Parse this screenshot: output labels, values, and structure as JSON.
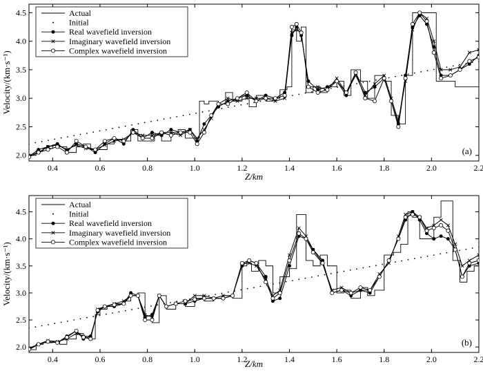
{
  "legend_labels": [
    "Actual",
    "Initial",
    "Real wavefield inversion",
    "Imaginary wavefield inversion",
    "Complex wavefield inversion"
  ],
  "chart_data": [
    {
      "type": "line",
      "panel_label": "(a)",
      "xlabel": "Z/km",
      "ylabel": "Velocity/(km·s⁻¹)",
      "xlim": [
        0.3,
        2.2
      ],
      "ylim": [
        1.9,
        4.65
      ],
      "xticks": [
        0.4,
        0.6,
        0.8,
        1.0,
        1.2,
        1.4,
        1.6,
        1.8,
        2.0,
        2.2
      ],
      "yticks": [
        2.0,
        2.5,
        3.0,
        3.5,
        4.0,
        4.5
      ],
      "legend_position": "top-left",
      "series": [
        {
          "name": "Actual",
          "style": "solid",
          "x": [
            0.3,
            0.33,
            0.36,
            0.4,
            0.43,
            0.46,
            0.5,
            0.53,
            0.56,
            0.6,
            0.63,
            0.66,
            0.7,
            0.73,
            0.76,
            0.8,
            0.83,
            0.86,
            0.9,
            0.93,
            0.96,
            1.0,
            1.02,
            1.04,
            1.06,
            1.1,
            1.13,
            1.16,
            1.2,
            1.23,
            1.26,
            1.3,
            1.33,
            1.36,
            1.39,
            1.41,
            1.43,
            1.45,
            1.47,
            1.5,
            1.53,
            1.56,
            1.6,
            1.63,
            1.66,
            1.7,
            1.73,
            1.76,
            1.8,
            1.83,
            1.86,
            1.89,
            1.92,
            1.94,
            1.97,
            2.0,
            2.02,
            2.05,
            2.1,
            2.13,
            2.16,
            2.2
          ],
          "y": [
            2.0,
            2.08,
            2.12,
            2.18,
            2.15,
            2.05,
            2.15,
            2.2,
            2.1,
            2.1,
            2.2,
            2.28,
            2.25,
            2.45,
            2.25,
            2.25,
            2.35,
            2.25,
            2.4,
            2.45,
            2.3,
            2.3,
            2.95,
            2.9,
            2.95,
            2.9,
            3.1,
            2.95,
            3.05,
            2.85,
            3.05,
            2.95,
            3.0,
            3.15,
            3.2,
            4.2,
            4.0,
            4.25,
            3.1,
            3.2,
            3.1,
            3.2,
            3.3,
            3.05,
            3.5,
            3.3,
            3.0,
            3.4,
            3.3,
            2.7,
            2.55,
            3.4,
            4.5,
            4.5,
            4.5,
            4.5,
            3.3,
            3.3,
            3.2,
            3.2,
            3.2,
            3.8
          ]
        },
        {
          "name": "Initial",
          "style": "dotted",
          "x": [
            0.3,
            2.2
          ],
          "y": [
            2.2,
            3.65
          ]
        },
        {
          "name": "Real wavefield inversion",
          "style": "filled-circle",
          "x": [
            0.3,
            0.34,
            0.38,
            0.42,
            0.46,
            0.5,
            0.54,
            0.58,
            0.62,
            0.66,
            0.7,
            0.74,
            0.78,
            0.82,
            0.86,
            0.9,
            0.94,
            0.98,
            1.01,
            1.04,
            1.07,
            1.1,
            1.14,
            1.18,
            1.22,
            1.26,
            1.3,
            1.34,
            1.38,
            1.41,
            1.43,
            1.45,
            1.48,
            1.52,
            1.56,
            1.6,
            1.64,
            1.68,
            1.72,
            1.76,
            1.8,
            1.83,
            1.86,
            1.89,
            1.92,
            1.95,
            1.98,
            2.01,
            2.04,
            2.08,
            2.12,
            2.16,
            2.2
          ],
          "y": [
            1.98,
            2.1,
            2.15,
            2.2,
            2.08,
            2.2,
            2.15,
            2.05,
            2.2,
            2.3,
            2.2,
            2.45,
            2.3,
            2.4,
            2.35,
            2.45,
            2.4,
            2.45,
            2.25,
            2.55,
            2.7,
            2.85,
            2.95,
            3.0,
            3.05,
            2.95,
            3.05,
            3.0,
            3.1,
            4.1,
            4.25,
            4.1,
            3.3,
            3.15,
            3.2,
            3.3,
            3.05,
            3.45,
            3.1,
            3.2,
            3.35,
            2.95,
            2.55,
            3.4,
            4.25,
            4.45,
            4.3,
            3.9,
            3.4,
            3.4,
            3.5,
            3.6,
            3.75
          ]
        },
        {
          "name": "Imaginary wavefield inversion",
          "style": "cross",
          "x": [
            0.3,
            0.34,
            0.38,
            0.42,
            0.46,
            0.5,
            0.54,
            0.58,
            0.62,
            0.66,
            0.7,
            0.74,
            0.78,
            0.82,
            0.86,
            0.9,
            0.94,
            0.98,
            1.01,
            1.04,
            1.07,
            1.1,
            1.14,
            1.18,
            1.22,
            1.26,
            1.3,
            1.34,
            1.38,
            1.41,
            1.43,
            1.45,
            1.48,
            1.52,
            1.56,
            1.6,
            1.64,
            1.68,
            1.72,
            1.76,
            1.8,
            1.83,
            1.86,
            1.89,
            1.92,
            1.95,
            1.98,
            2.01,
            2.04,
            2.08,
            2.12,
            2.16,
            2.2
          ],
          "y": [
            2.0,
            2.05,
            2.15,
            2.18,
            2.1,
            2.18,
            2.12,
            2.1,
            2.18,
            2.25,
            2.28,
            2.4,
            2.35,
            2.35,
            2.4,
            2.4,
            2.35,
            2.45,
            2.3,
            2.45,
            2.65,
            2.9,
            3.0,
            2.95,
            3.0,
            3.0,
            3.0,
            2.95,
            3.0,
            4.15,
            4.2,
            4.15,
            3.2,
            3.2,
            3.15,
            3.35,
            3.1,
            3.4,
            3.05,
            3.25,
            3.4,
            3.0,
            2.6,
            3.3,
            4.2,
            4.5,
            4.4,
            4.0,
            3.5,
            3.5,
            3.55,
            3.8,
            3.85
          ]
        },
        {
          "name": "Complex wavefield inversion",
          "style": "open-circle",
          "x": [
            0.3,
            0.34,
            0.38,
            0.42,
            0.46,
            0.5,
            0.54,
            0.58,
            0.62,
            0.66,
            0.7,
            0.74,
            0.78,
            0.82,
            0.86,
            0.9,
            0.94,
            0.98,
            1.01,
            1.04,
            1.07,
            1.1,
            1.14,
            1.18,
            1.22,
            1.26,
            1.3,
            1.34,
            1.38,
            1.41,
            1.43,
            1.45,
            1.48,
            1.52,
            1.56,
            1.6,
            1.64,
            1.68,
            1.72,
            1.76,
            1.8,
            1.83,
            1.86,
            1.89,
            1.92,
            1.95,
            1.98,
            2.01,
            2.04,
            2.08,
            2.12,
            2.16,
            2.2
          ],
          "y": [
            1.97,
            2.05,
            2.1,
            2.15,
            2.05,
            2.25,
            2.15,
            2.1,
            2.25,
            2.3,
            2.25,
            2.4,
            2.3,
            2.3,
            2.4,
            2.35,
            2.4,
            2.4,
            2.2,
            2.4,
            2.7,
            2.9,
            2.9,
            3.0,
            3.1,
            2.95,
            3.0,
            3.0,
            3.05,
            4.25,
            4.3,
            4.15,
            3.2,
            3.1,
            3.15,
            3.3,
            3.1,
            3.45,
            3.0,
            2.95,
            3.35,
            2.95,
            2.5,
            3.35,
            4.3,
            4.5,
            4.35,
            3.8,
            3.35,
            3.4,
            3.5,
            3.65,
            3.72
          ]
        }
      ]
    },
    {
      "type": "line",
      "panel_label": "(b)",
      "xlabel": "Z/km",
      "ylabel": "Velocity/(km·s⁻¹)",
      "xlim": [
        0.3,
        2.2
      ],
      "ylim": [
        1.9,
        4.8
      ],
      "xticks": [
        0.4,
        0.6,
        0.8,
        1.0,
        1.2,
        1.4,
        1.6,
        1.8,
        2.0,
        2.2
      ],
      "yticks": [
        2.0,
        2.5,
        3.0,
        3.5,
        4.0,
        4.5
      ],
      "legend_position": "top-left",
      "series": [
        {
          "name": "Actual",
          "style": "solid",
          "x": [
            0.3,
            0.33,
            0.36,
            0.4,
            0.43,
            0.46,
            0.5,
            0.53,
            0.56,
            0.58,
            0.6,
            0.63,
            0.66,
            0.7,
            0.73,
            0.76,
            0.79,
            0.82,
            0.85,
            0.88,
            0.92,
            0.96,
            1.0,
            1.04,
            1.08,
            1.12,
            1.16,
            1.2,
            1.22,
            1.24,
            1.27,
            1.3,
            1.33,
            1.36,
            1.4,
            1.43,
            1.45,
            1.47,
            1.5,
            1.53,
            1.56,
            1.6,
            1.63,
            1.66,
            1.7,
            1.73,
            1.76,
            1.8,
            1.84,
            1.87,
            1.9,
            1.92,
            1.95,
            1.98,
            2.01,
            2.04,
            2.07,
            2.09,
            2.12,
            2.15,
            2.18,
            2.2
          ],
          "y": [
            1.95,
            2.05,
            2.08,
            2.1,
            2.05,
            2.15,
            2.25,
            2.2,
            2.15,
            2.6,
            2.7,
            2.75,
            2.8,
            2.85,
            2.95,
            3.0,
            2.5,
            2.45,
            2.95,
            2.7,
            2.8,
            2.75,
            2.9,
            2.85,
            2.9,
            2.95,
            2.9,
            3.5,
            3.55,
            3.4,
            3.6,
            3.5,
            3.0,
            3.3,
            3.45,
            4.45,
            4.45,
            3.6,
            3.5,
            3.7,
            3.5,
            3.0,
            3.05,
            2.9,
            3.1,
            2.95,
            3.05,
            3.7,
            3.75,
            3.9,
            4.5,
            4.4,
            4.0,
            4.0,
            4.4,
            4.7,
            4.7,
            3.6,
            3.2,
            3.4,
            3.5,
            3.7
          ]
        },
        {
          "name": "Initial",
          "style": "dotted",
          "x": [
            0.3,
            2.2
          ],
          "y": [
            2.35,
            3.85
          ]
        },
        {
          "name": "Real wavefield inversion",
          "style": "filled-circle",
          "x": [
            0.3,
            0.34,
            0.38,
            0.42,
            0.46,
            0.5,
            0.53,
            0.56,
            0.59,
            0.62,
            0.66,
            0.7,
            0.73,
            0.76,
            0.79,
            0.82,
            0.85,
            0.88,
            0.92,
            0.96,
            1.0,
            1.04,
            1.08,
            1.12,
            1.16,
            1.2,
            1.23,
            1.26,
            1.3,
            1.33,
            1.36,
            1.4,
            1.44,
            1.47,
            1.5,
            1.54,
            1.58,
            1.62,
            1.66,
            1.7,
            1.74,
            1.78,
            1.82,
            1.86,
            1.89,
            1.92,
            1.95,
            1.98,
            2.01,
            2.04,
            2.07,
            2.1,
            2.13,
            2.16,
            2.2
          ],
          "y": [
            1.95,
            2.05,
            2.1,
            2.08,
            2.2,
            2.3,
            2.15,
            2.2,
            2.65,
            2.75,
            2.75,
            2.8,
            3.0,
            2.95,
            2.55,
            2.6,
            2.95,
            2.75,
            2.8,
            2.8,
            2.85,
            2.9,
            2.9,
            2.9,
            2.95,
            3.5,
            3.6,
            3.55,
            3.3,
            2.85,
            2.9,
            3.5,
            4.05,
            4.0,
            3.8,
            3.6,
            3.0,
            3.05,
            2.95,
            3.05,
            3.0,
            3.3,
            3.6,
            4.0,
            4.35,
            4.5,
            4.35,
            4.1,
            4.0,
            4.05,
            4.0,
            3.8,
            3.3,
            3.5,
            3.55
          ]
        },
        {
          "name": "Imaginary wavefield inversion",
          "style": "cross",
          "x": [
            0.3,
            0.34,
            0.38,
            0.42,
            0.46,
            0.5,
            0.53,
            0.56,
            0.59,
            0.62,
            0.66,
            0.7,
            0.73,
            0.76,
            0.79,
            0.82,
            0.85,
            0.88,
            0.92,
            0.96,
            1.0,
            1.04,
            1.08,
            1.12,
            1.16,
            1.2,
            1.23,
            1.26,
            1.3,
            1.33,
            1.36,
            1.4,
            1.44,
            1.47,
            1.5,
            1.54,
            1.58,
            1.62,
            1.66,
            1.7,
            1.74,
            1.78,
            1.82,
            1.86,
            1.89,
            1.92,
            1.95,
            1.98,
            2.01,
            2.04,
            2.07,
            2.1,
            2.13,
            2.16,
            2.2
          ],
          "y": [
            1.98,
            2.05,
            2.12,
            2.1,
            2.15,
            2.25,
            2.2,
            2.15,
            2.7,
            2.75,
            2.8,
            2.85,
            2.95,
            2.95,
            2.6,
            2.55,
            2.95,
            2.75,
            2.8,
            2.8,
            2.95,
            2.95,
            2.9,
            2.95,
            2.95,
            3.55,
            3.55,
            3.5,
            3.25,
            2.95,
            3.05,
            3.7,
            4.2,
            4.05,
            3.8,
            3.55,
            3.05,
            3.1,
            3.0,
            3.05,
            3.05,
            3.35,
            3.55,
            4.05,
            4.45,
            4.5,
            4.4,
            4.2,
            4.25,
            4.35,
            4.25,
            3.9,
            3.5,
            3.6,
            3.7
          ]
        },
        {
          "name": "Complex wavefield inversion",
          "style": "open-circle",
          "x": [
            0.3,
            0.34,
            0.38,
            0.42,
            0.46,
            0.5,
            0.53,
            0.56,
            0.59,
            0.62,
            0.66,
            0.7,
            0.73,
            0.76,
            0.79,
            0.82,
            0.85,
            0.88,
            0.92,
            0.96,
            1.0,
            1.04,
            1.08,
            1.12,
            1.16,
            1.2,
            1.23,
            1.26,
            1.3,
            1.33,
            1.36,
            1.4,
            1.44,
            1.47,
            1.5,
            1.54,
            1.58,
            1.62,
            1.66,
            1.7,
            1.74,
            1.78,
            1.82,
            1.86,
            1.89,
            1.92,
            1.95,
            1.98,
            2.01,
            2.04,
            2.07,
            2.1,
            2.13,
            2.16,
            2.2
          ],
          "y": [
            1.96,
            2.05,
            2.1,
            2.08,
            2.18,
            2.3,
            2.18,
            2.15,
            2.68,
            2.75,
            2.78,
            2.8,
            2.95,
            2.95,
            2.5,
            2.5,
            2.95,
            2.75,
            2.8,
            2.85,
            2.88,
            2.9,
            2.9,
            2.9,
            2.95,
            3.55,
            3.6,
            3.55,
            3.2,
            2.9,
            3.0,
            3.6,
            4.1,
            4.0,
            3.75,
            3.55,
            3.0,
            3.05,
            3.0,
            3.1,
            3.05,
            3.3,
            3.6,
            4.0,
            4.4,
            4.45,
            4.4,
            4.15,
            4.2,
            4.25,
            4.15,
            3.8,
            3.3,
            3.55,
            3.6
          ]
        }
      ]
    }
  ]
}
